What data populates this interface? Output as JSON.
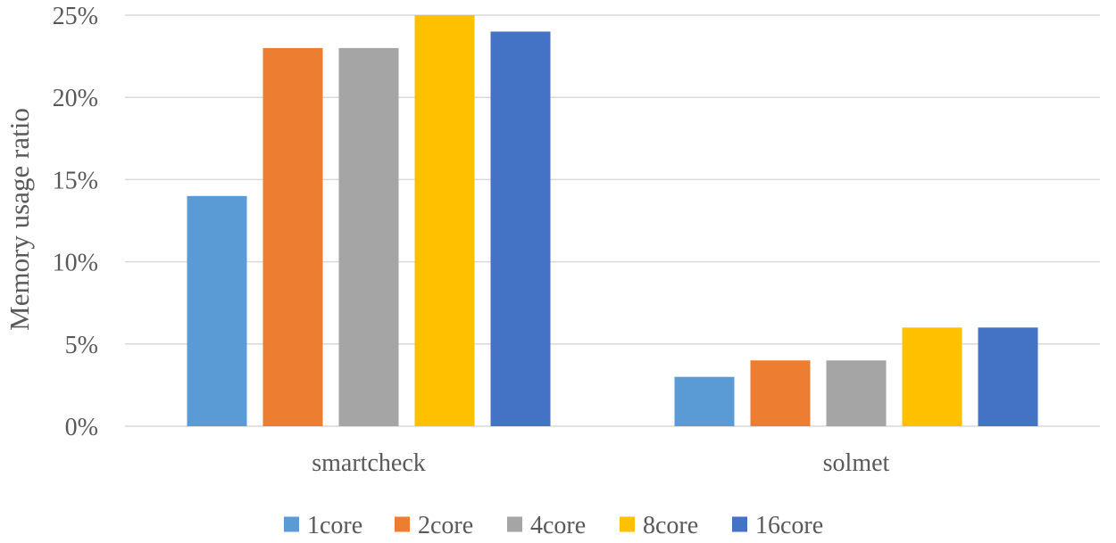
{
  "chart_data": {
    "type": "bar",
    "categories": [
      "smartcheck",
      "solmet"
    ],
    "series": [
      {
        "name": "1core",
        "values": [
          14,
          3
        ],
        "color": "#5b9bd5"
      },
      {
        "name": "2core",
        "values": [
          23,
          4
        ],
        "color": "#ed7d31"
      },
      {
        "name": "4core",
        "values": [
          23,
          4
        ],
        "color": "#a5a5a5"
      },
      {
        "name": "8core",
        "values": [
          25,
          6
        ],
        "color": "#ffc000"
      },
      {
        "name": "16core",
        "values": [
          24,
          6
        ],
        "color": "#4472c4"
      }
    ],
    "title": "",
    "xlabel": "",
    "ylabel": "Memory usage ratio",
    "ylim": [
      0,
      25
    ],
    "yticks": [
      "0%",
      "5%",
      "10%",
      "15%",
      "20%",
      "25%"
    ],
    "grid": true,
    "legend": "bottom"
  }
}
